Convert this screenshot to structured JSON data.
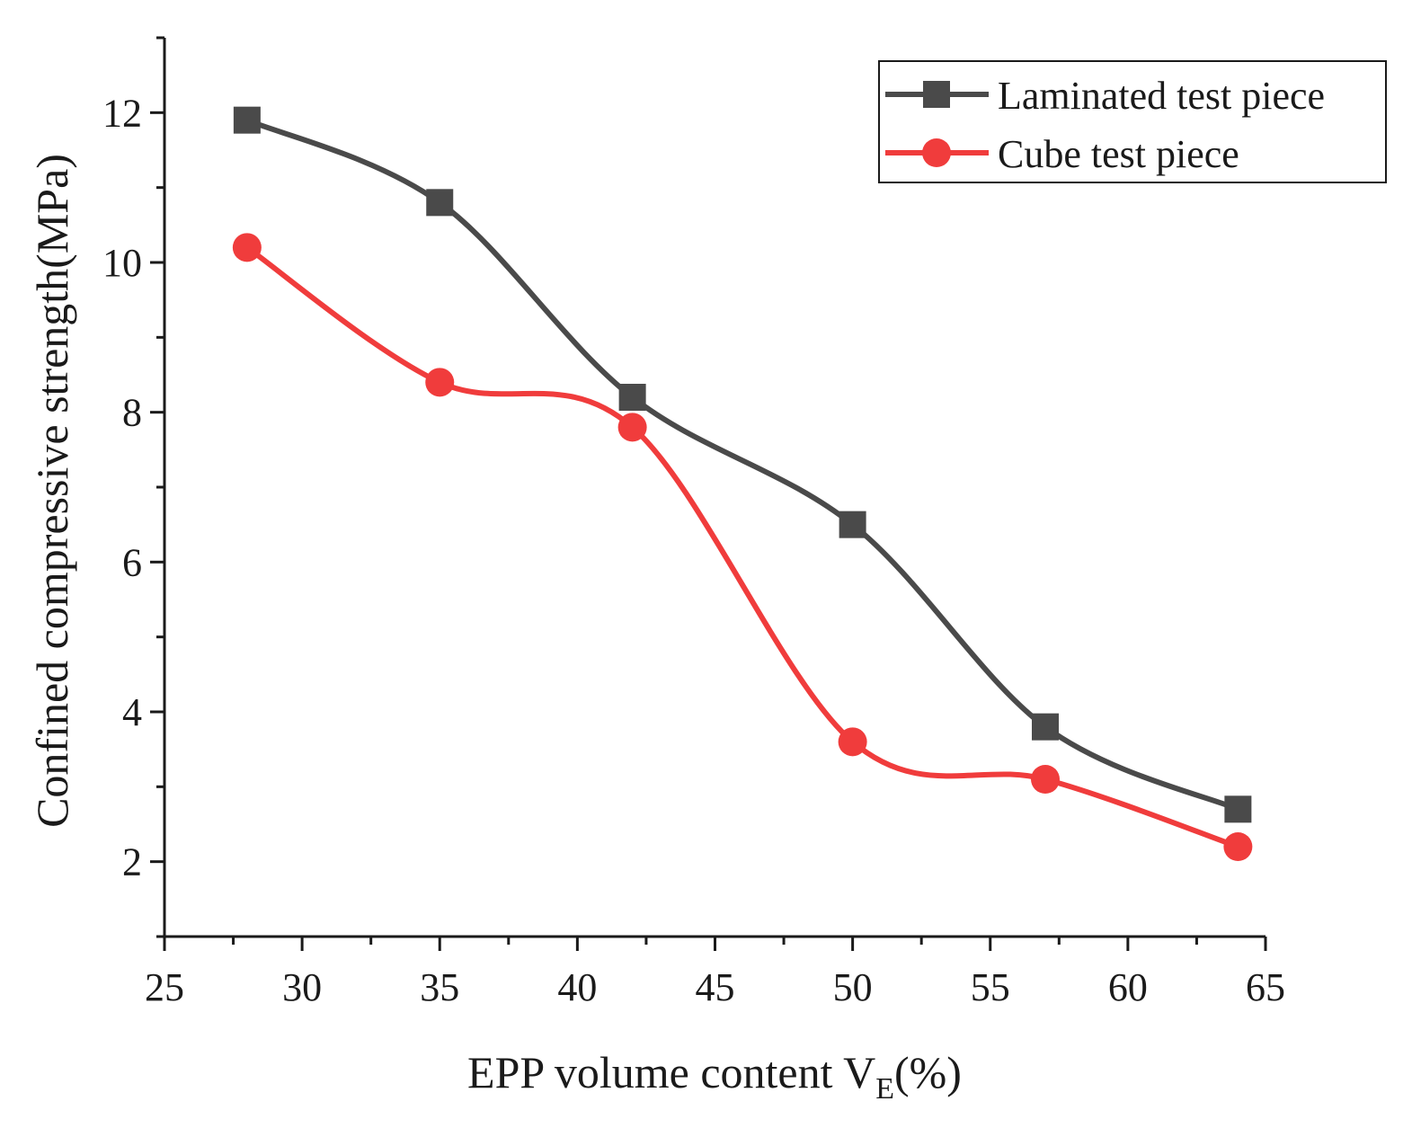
{
  "chart_data": {
    "type": "line",
    "xlabel": "EPP volume content  V",
    "xlabel_sub": "E",
    "xlabel_suffix": "(%)",
    "ylabel": "Confined compressive strength(MPa)",
    "xlim": [
      25,
      65
    ],
    "ylim": [
      1,
      13
    ],
    "xticks": [
      25,
      30,
      35,
      40,
      45,
      50,
      55,
      60,
      65
    ],
    "yticks": [
      2,
      4,
      6,
      8,
      10,
      12
    ],
    "grid": false,
    "legend_position": "top-right",
    "series": [
      {
        "name": "Laminated test piece",
        "color": "#4a4a4a",
        "marker": "square",
        "x": [
          28,
          35,
          42,
          50,
          57,
          64
        ],
        "y": [
          11.9,
          10.8,
          8.2,
          6.5,
          3.8,
          2.7
        ]
      },
      {
        "name": "Cube test piece",
        "color": "#f03c3c",
        "marker": "circle",
        "x": [
          28,
          35,
          42,
          50,
          57,
          64
        ],
        "y": [
          10.2,
          8.4,
          7.8,
          3.6,
          3.1,
          2.2
        ]
      }
    ]
  }
}
